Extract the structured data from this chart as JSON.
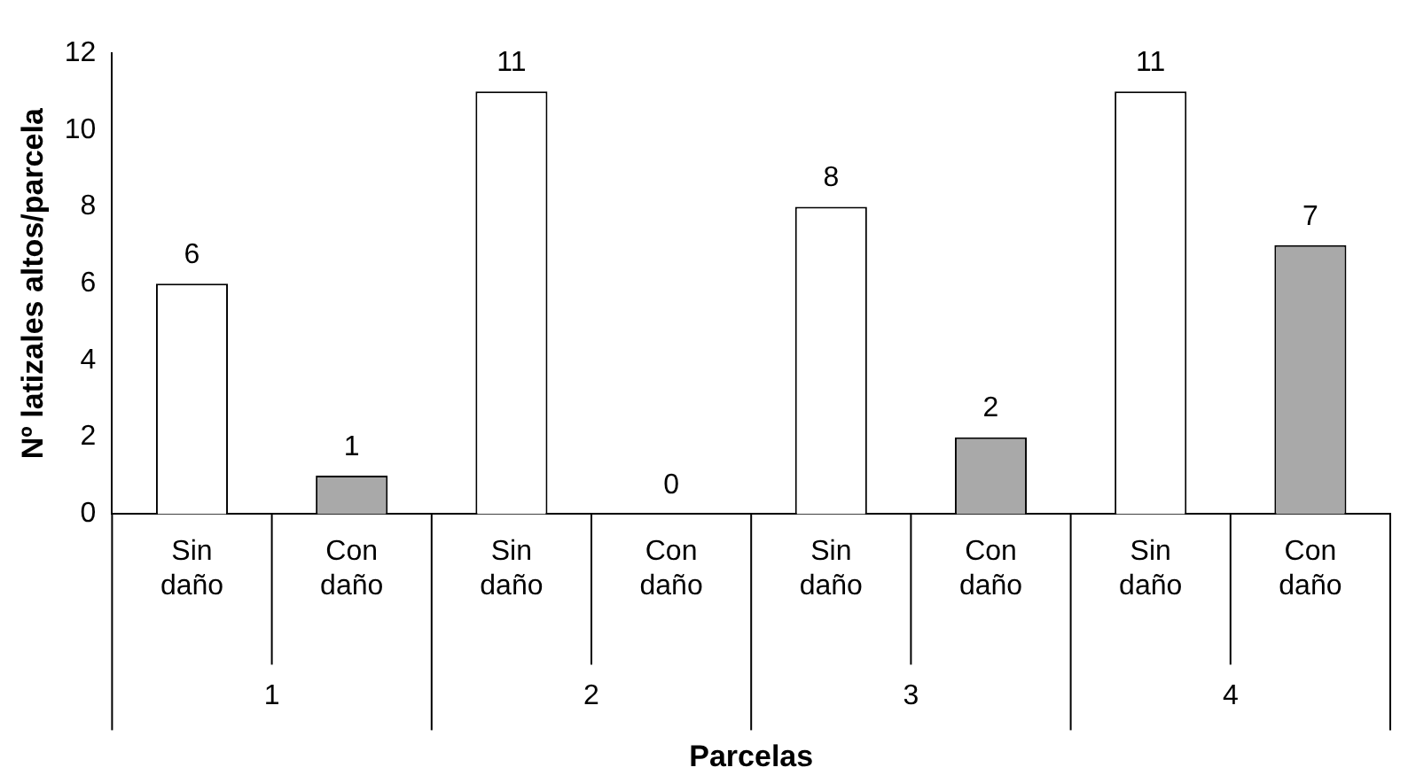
{
  "chart_data": {
    "type": "bar",
    "xlabel": "Parcelas",
    "ylabel": "Nº latizales altos/parcela",
    "categories": [
      "Sin daño",
      "Con daño",
      "Sin daño",
      "Con daño",
      "Sin daño",
      "Con daño",
      "Sin daño",
      "Con daño"
    ],
    "values": [
      6,
      1,
      11,
      0,
      8,
      2,
      11,
      7
    ],
    "colors": [
      "#ffffff",
      "#a9a9a9",
      "#ffffff",
      "#a9a9a9",
      "#ffffff",
      "#a9a9a9",
      "#ffffff",
      "#a9a9a9"
    ],
    "ylim": [
      0,
      12
    ],
    "yticks": [
      0,
      2,
      4,
      6,
      8,
      10,
      12
    ],
    "annotations": [
      "1",
      "2",
      "3",
      "4"
    ],
    "data_labels": true,
    "grid": false,
    "legend": false
  }
}
